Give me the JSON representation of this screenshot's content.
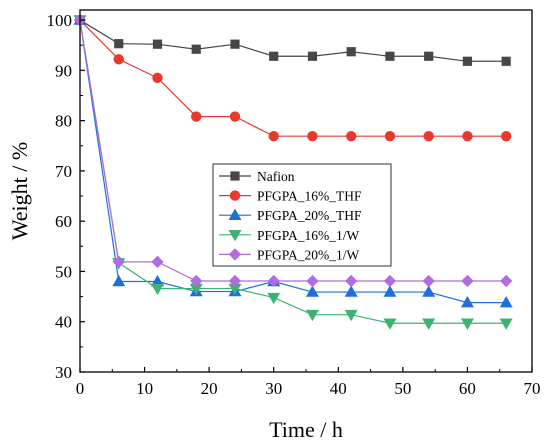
{
  "chart_data": {
    "type": "line",
    "xlabel": "Time / h",
    "ylabel": "Weight / %",
    "xlim": [
      0,
      70
    ],
    "ylim": [
      30,
      102
    ],
    "xticks": [
      0,
      10,
      20,
      30,
      40,
      50,
      60,
      70
    ],
    "yticks": [
      30,
      40,
      50,
      60,
      70,
      80,
      90,
      100
    ],
    "grid": false,
    "legend_position": "center",
    "series": [
      {
        "name": "Nafion",
        "color": "#474747",
        "marker": "square",
        "x": [
          0,
          6,
          12,
          18,
          24,
          30,
          36,
          42,
          48,
          54,
          60,
          66
        ],
        "values": [
          100,
          95.3,
          95.2,
          94.2,
          95.2,
          92.8,
          92.8,
          93.7,
          92.8,
          92.8,
          91.8,
          91.8
        ]
      },
      {
        "name": "PFGPA_16%_THF",
        "color": "#e8392f",
        "marker": "circle",
        "x": [
          0,
          6,
          12,
          18,
          24,
          30,
          36,
          42,
          48,
          54,
          60,
          66
        ],
        "values": [
          100,
          92.2,
          88.5,
          80.8,
          80.8,
          76.9,
          76.9,
          76.9,
          76.9,
          76.9,
          76.9,
          76.9
        ]
      },
      {
        "name": "PFGPA_20%_THF",
        "color": "#1f6fd9",
        "marker": "triangle-up",
        "x": [
          0,
          6,
          12,
          18,
          24,
          30,
          36,
          42,
          48,
          54,
          60,
          66
        ],
        "values": [
          100,
          48.0,
          48.0,
          46.0,
          46.0,
          48.0,
          45.9,
          45.9,
          45.9,
          45.9,
          43.8,
          43.8
        ]
      },
      {
        "name": "PFGPA_16%_1/W",
        "color": "#3cb371",
        "marker": "triangle-down",
        "x": [
          0,
          6,
          12,
          18,
          24,
          30,
          36,
          42,
          48,
          54,
          60,
          66
        ],
        "values": [
          100,
          51.7,
          46.6,
          46.6,
          46.6,
          44.8,
          41.4,
          41.4,
          39.7,
          39.7,
          39.7,
          39.7
        ]
      },
      {
        "name": "PFGPA_20%_1/W",
        "color": "#b26be0",
        "marker": "diamond",
        "x": [
          0,
          6,
          12,
          18,
          24,
          30,
          36,
          42,
          48,
          54,
          60,
          66
        ],
        "values": [
          100,
          51.9,
          51.9,
          48.1,
          48.1,
          48.1,
          48.1,
          48.1,
          48.1,
          48.1,
          48.1,
          48.1
        ]
      }
    ]
  }
}
